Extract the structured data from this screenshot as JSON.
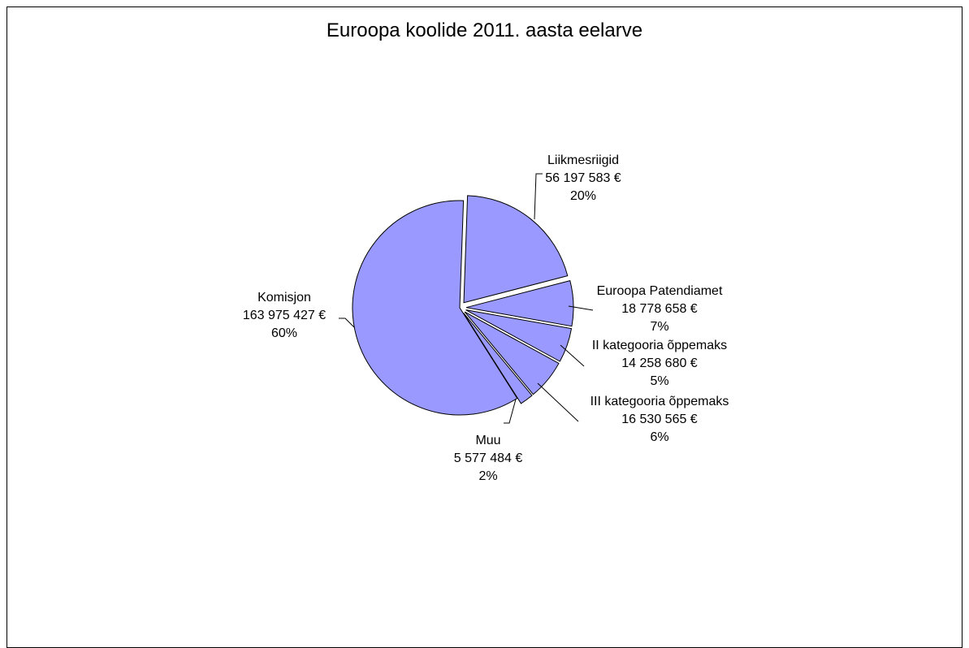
{
  "chart_data": {
    "type": "pie",
    "title": "Euroopa koolide 2011. aasta eelarve",
    "slice_color": "#9999ff",
    "slices": [
      {
        "name": "Liikmesriigid",
        "amount": "56 197 583 €",
        "percent": "20%",
        "value": 56197583,
        "exploded": true
      },
      {
        "name": "Euroopa Patendiamet",
        "amount": "18 778 658 €",
        "percent": "7%",
        "value": 18778658,
        "exploded": true
      },
      {
        "name": "II kategooria õppemaks",
        "amount": "14 258 680 €",
        "percent": "5%",
        "value": 14258680,
        "exploded": true
      },
      {
        "name": "III kategooria õppemaks",
        "amount": "16 530 565 €",
        "percent": "6%",
        "value": 16530565,
        "exploded": true
      },
      {
        "name": "Muu",
        "amount": "5 577 484 €",
        "percent": "2%",
        "value": 5577484,
        "exploded": true
      },
      {
        "name": "Komisjon",
        "amount": "163 975 427 €",
        "percent": "60%",
        "value": 163975427,
        "exploded": false
      }
    ]
  }
}
